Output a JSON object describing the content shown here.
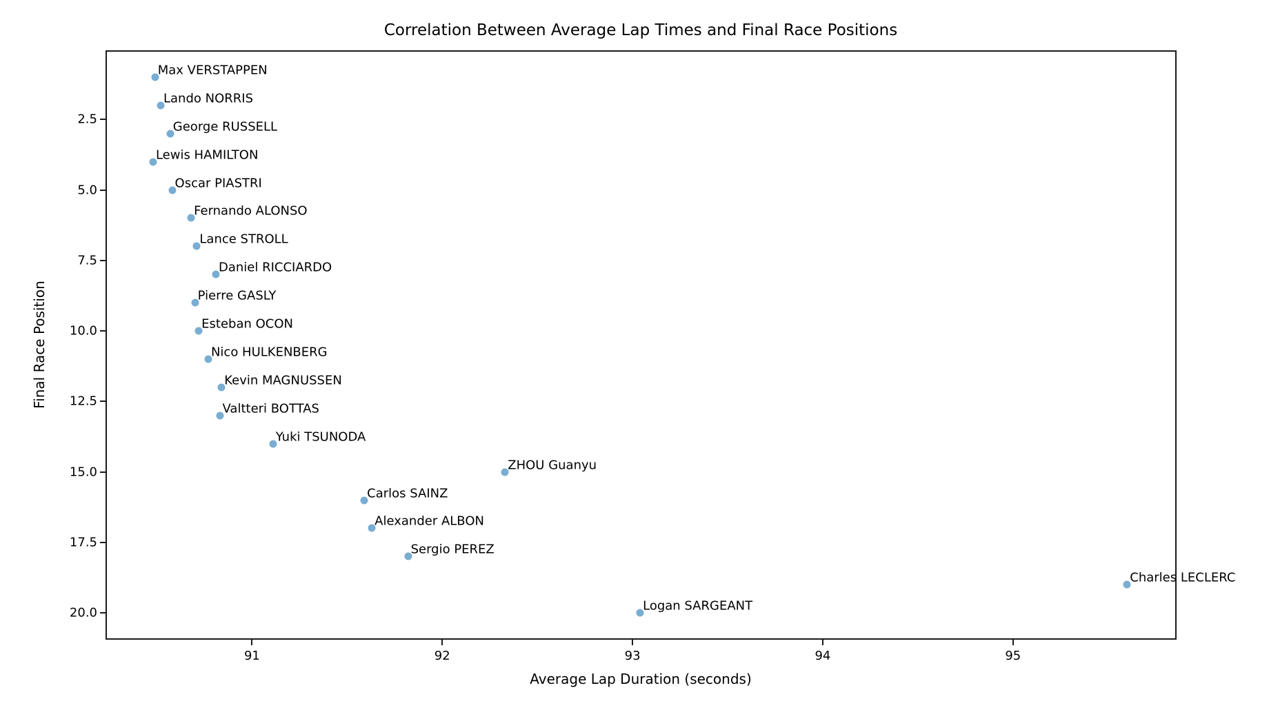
{
  "chart_data": {
    "type": "scatter",
    "title": "Correlation Between Average Lap Times and Final Race Positions",
    "xlabel": "Average Lap Duration (seconds)",
    "ylabel": "Final Race Position",
    "grid": false,
    "legend": "none",
    "y_axis_inverted": true,
    "xlim": [
      90.23,
      95.86
    ],
    "ylim": [
      0.05,
      20.95
    ],
    "x_ticks": [
      {
        "value": 91,
        "label": "91"
      },
      {
        "value": 92,
        "label": "92"
      },
      {
        "value": 93,
        "label": "93"
      },
      {
        "value": 94,
        "label": "94"
      },
      {
        "value": 95,
        "label": "95"
      }
    ],
    "y_ticks": [
      {
        "value": 2.5,
        "label": "2.5"
      },
      {
        "value": 5.0,
        "label": "5.0"
      },
      {
        "value": 7.5,
        "label": "7.5"
      },
      {
        "value": 10.0,
        "label": "10.0"
      },
      {
        "value": 12.5,
        "label": "12.5"
      },
      {
        "value": 15.0,
        "label": "15.0"
      },
      {
        "value": 17.5,
        "label": "17.5"
      },
      {
        "value": 20.0,
        "label": "20.0"
      }
    ],
    "marker_color": "#79add2",
    "points": [
      {
        "driver": "Max VERSTAPPEN",
        "avg_lap_seconds": 90.49,
        "final_position": 1
      },
      {
        "driver": "Lando NORRIS",
        "avg_lap_seconds": 90.52,
        "final_position": 2
      },
      {
        "driver": "George RUSSELL",
        "avg_lap_seconds": 90.57,
        "final_position": 3
      },
      {
        "driver": "Lewis HAMILTON",
        "avg_lap_seconds": 90.48,
        "final_position": 4
      },
      {
        "driver": "Oscar PIASTRI",
        "avg_lap_seconds": 90.58,
        "final_position": 5
      },
      {
        "driver": "Fernando ALONSO",
        "avg_lap_seconds": 90.68,
        "final_position": 6
      },
      {
        "driver": "Lance STROLL",
        "avg_lap_seconds": 90.71,
        "final_position": 7
      },
      {
        "driver": "Daniel RICCIARDO",
        "avg_lap_seconds": 90.81,
        "final_position": 8
      },
      {
        "driver": "Pierre GASLY",
        "avg_lap_seconds": 90.7,
        "final_position": 9
      },
      {
        "driver": "Esteban OCON",
        "avg_lap_seconds": 90.72,
        "final_position": 10
      },
      {
        "driver": "Nico HULKENBERG",
        "avg_lap_seconds": 90.77,
        "final_position": 11
      },
      {
        "driver": "Kevin MAGNUSSEN",
        "avg_lap_seconds": 90.84,
        "final_position": 12
      },
      {
        "driver": "Valtteri BOTTAS",
        "avg_lap_seconds": 90.83,
        "final_position": 13
      },
      {
        "driver": "Yuki TSUNODA",
        "avg_lap_seconds": 91.11,
        "final_position": 14
      },
      {
        "driver": "ZHOU Guanyu",
        "avg_lap_seconds": 92.33,
        "final_position": 15
      },
      {
        "driver": "Carlos SAINZ",
        "avg_lap_seconds": 91.59,
        "final_position": 16
      },
      {
        "driver": "Alexander ALBON",
        "avg_lap_seconds": 91.63,
        "final_position": 17
      },
      {
        "driver": "Sergio PEREZ",
        "avg_lap_seconds": 91.82,
        "final_position": 18
      },
      {
        "driver": "Charles LECLERC",
        "avg_lap_seconds": 95.6,
        "final_position": 19
      },
      {
        "driver": "Logan SARGEANT",
        "avg_lap_seconds": 93.04,
        "final_position": 20
      }
    ]
  }
}
